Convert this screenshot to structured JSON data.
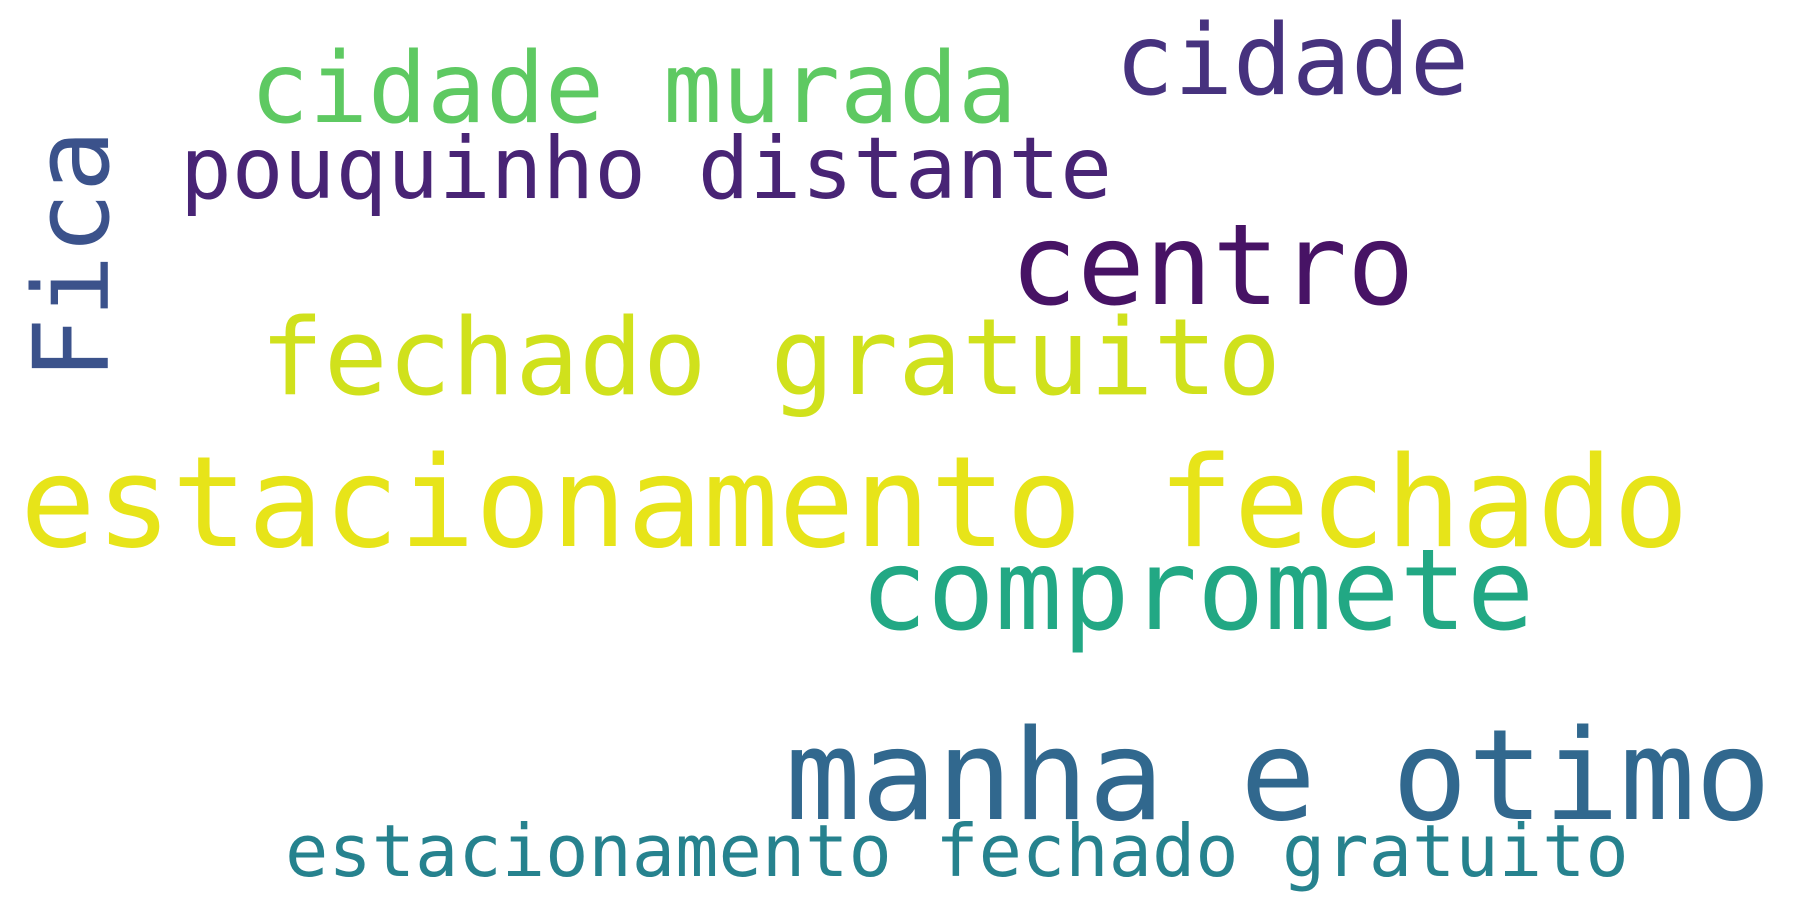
{
  "words": [
    {
      "text": "Fica",
      "color": "#3b528b",
      "orientation": "vertical"
    },
    {
      "text": "cidade murada",
      "color": "#5ec962",
      "orientation": "horizontal"
    },
    {
      "text": "cidade",
      "color": "#46327e",
      "orientation": "horizontal"
    },
    {
      "text": "pouquinho distante",
      "color": "#482475",
      "orientation": "horizontal"
    },
    {
      "text": "centro",
      "color": "#471365",
      "orientation": "horizontal"
    },
    {
      "text": "fechado gratuito",
      "color": "#d0e11c",
      "orientation": "horizontal"
    },
    {
      "text": "estacionamento fechado",
      "color": "#e7e419",
      "orientation": "horizontal"
    },
    {
      "text": "compromete",
      "color": "#22a884",
      "orientation": "horizontal"
    },
    {
      "text": "manha e otimo",
      "color": "#31688e",
      "orientation": "horizontal"
    },
    {
      "text": "estacionamento fechado gratuito",
      "color": "#26828e",
      "orientation": "horizontal"
    }
  ]
}
